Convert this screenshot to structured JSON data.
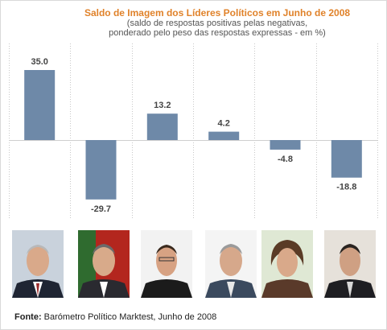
{
  "chart_data": {
    "type": "bar",
    "title": "Saldo de Imagem dos Líderes Políticos em Junho de 2008",
    "subtitle": [
      "(saldo de respostas positivas pelas negativas,",
      "ponderado pelo peso das respostas expressas - em %)"
    ],
    "values": [
      35.0,
      -29.7,
      13.2,
      4.2,
      -4.8,
      -18.8
    ],
    "value_labels": [
      "35.0",
      "-29.7",
      "13.2",
      "4.2",
      "-4.8",
      "-18.8"
    ],
    "ylim": [
      -30,
      35
    ],
    "grid": "vertical dotted separators",
    "bar_color": "#6e89a8"
  },
  "source": {
    "label": "Fonte:",
    "text": "Barómetro Político Marktest, Junho de 2008"
  },
  "photos": [
    "portrait-1",
    "portrait-2",
    "portrait-3",
    "portrait-4",
    "portrait-5",
    "portrait-6"
  ]
}
